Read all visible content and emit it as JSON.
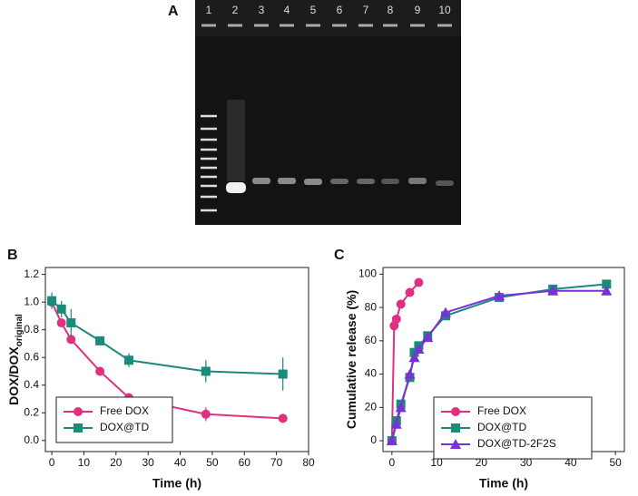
{
  "gel": {
    "label": "A",
    "lanes": [
      "1",
      "2",
      "3",
      "4",
      "5",
      "6",
      "7",
      "8",
      "9",
      "10"
    ]
  },
  "chart_data": [
    {
      "type": "line",
      "panel": "B",
      "xlabel": "Time (h)",
      "ylabel": "DOX/DOX",
      "ylabel_subscript": "original",
      "xlim": [
        -2,
        80
      ],
      "xticks": [
        0,
        10,
        20,
        30,
        40,
        50,
        60,
        70,
        80
      ],
      "ylim": [
        -0.08,
        1.25
      ],
      "yticks": [
        {
          "value": 0,
          "label": "0.0"
        },
        0.2,
        0.4,
        0.6,
        0.8,
        {
          "value": 1,
          "label": "1.0"
        },
        1.2
      ],
      "legend": "bottom-left",
      "series": [
        {
          "name": "Free DOX",
          "color": "#e0307f",
          "marker": "circle",
          "x": [
            0,
            3,
            6,
            15,
            24,
            48,
            72
          ],
          "values": [
            1.0,
            0.85,
            0.73,
            0.5,
            0.31,
            0.19,
            0.16
          ],
          "errors": [
            0.02,
            0.02,
            0.02,
            0.02,
            0.02,
            0.05,
            0.02
          ]
        },
        {
          "name": "DOX@TD",
          "color": "#1a8a7a",
          "marker": "square",
          "x": [
            0,
            3,
            6,
            15,
            24,
            48,
            72
          ],
          "values": [
            1.01,
            0.95,
            0.85,
            0.72,
            0.58,
            0.5,
            0.48
          ],
          "errors": [
            0.06,
            0.06,
            0.1,
            0.02,
            0.05,
            0.08,
            0.12
          ]
        }
      ]
    },
    {
      "type": "line",
      "panel": "C",
      "xlabel": "Time (h)",
      "ylabel": "Cumulative release (%)",
      "xlim": [
        -2,
        52
      ],
      "xticks": [
        0,
        10,
        20,
        30,
        40,
        50
      ],
      "ylim": [
        -6.5,
        104
      ],
      "yticks": [
        0,
        20,
        40,
        60,
        80,
        100
      ],
      "legend": "bottom-right",
      "series": [
        {
          "name": "Free DOX",
          "color": "#e0307f",
          "marker": "circle",
          "x": [
            0,
            0.5,
            1,
            2,
            4,
            6
          ],
          "values": [
            0,
            69,
            73,
            82,
            89,
            95
          ]
        },
        {
          "name": "DOX@TD",
          "color": "#1a8a7a",
          "marker": "square",
          "x": [
            0,
            1,
            2,
            4,
            5,
            6,
            8,
            12,
            24,
            36,
            48
          ],
          "values": [
            0,
            12,
            22,
            38,
            53,
            57,
            63,
            75,
            86,
            91,
            94
          ]
        },
        {
          "name": "DOX@TD-2F2S",
          "color": "#7b2fd6",
          "marker": "triangle",
          "x": [
            0,
            1,
            2,
            4,
            5,
            6,
            8,
            12,
            24,
            36,
            48
          ],
          "values": [
            0,
            10,
            20,
            40,
            50,
            55,
            62,
            77,
            87,
            90,
            90
          ]
        }
      ]
    }
  ]
}
